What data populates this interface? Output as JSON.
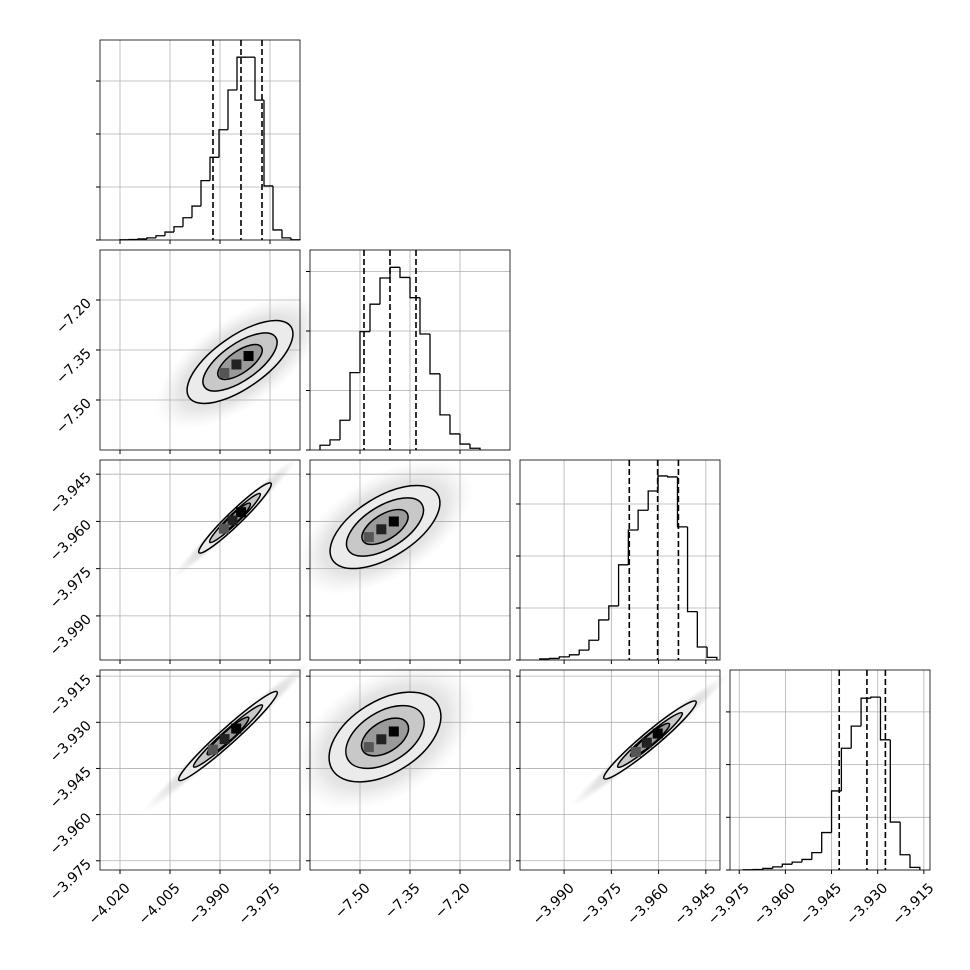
{
  "chart_data": {
    "type": "corner",
    "grid": true,
    "color": "#000000",
    "params": [
      {
        "lim": [
          -4.026,
          -3.966
        ],
        "ticks": [
          {
            "value": -4.02,
            "label": "−4.020"
          },
          {
            "value": -4.005,
            "label": "−4.005"
          },
          {
            "value": -3.99,
            "label": "−3.990"
          },
          {
            "value": -3.975,
            "label": "−3.975"
          }
        ],
        "bins": [
          -4.02,
          -4.0173,
          -4.0146,
          -4.0119,
          -4.0092,
          -4.0065,
          -4.0038,
          -4.0011,
          -3.9984,
          -3.9957,
          -3.993,
          -3.9903,
          -3.9876,
          -3.9849,
          -3.9822,
          -3.9795,
          -3.9768,
          -3.9741,
          -3.9714,
          -3.9687,
          -3.966
        ],
        "counts": [
          5,
          10,
          20,
          40,
          80,
          150,
          250,
          420,
          640,
          1120,
          1560,
          2080,
          2830,
          3450,
          3450,
          2640,
          1020,
          190,
          40,
          5
        ],
        "count_lim": [
          0,
          3774
        ],
        "count_ticks": [
          0,
          1000,
          2000,
          3000
        ],
        "quantiles": [
          -3.9921,
          -3.9837,
          -3.9774
        ]
      },
      {
        "lim": [
          -7.65,
          -7.05
        ],
        "ticks": [
          {
            "value": -7.5,
            "label": "−7.50"
          },
          {
            "value": -7.35,
            "label": "−7.35"
          },
          {
            "value": -7.2,
            "label": "−7.20"
          }
        ],
        "bins": [
          -7.62,
          -7.59,
          -7.56,
          -7.53,
          -7.5,
          -7.47,
          -7.44,
          -7.41,
          -7.38,
          -7.35,
          -7.32,
          -7.29,
          -7.26,
          -7.23,
          -7.2,
          -7.17,
          -7.14
        ],
        "counts": [
          80,
          170,
          500,
          1300,
          1990,
          2450,
          2890,
          3070,
          2900,
          2560,
          1950,
          1280,
          590,
          270,
          100,
          30
        ],
        "count_lim": [
          0,
          3361
        ],
        "count_ticks": [
          0,
          1000,
          2000,
          3000
        ],
        "quantiles": [
          -7.488,
          -7.41,
          -7.332
        ]
      },
      {
        "lim": [
          -4.004,
          -3.9405
        ],
        "ticks": [
          {
            "value": -3.99,
            "label": "−3.990"
          },
          {
            "value": -3.975,
            "label": "−3.975"
          },
          {
            "value": -3.96,
            "label": "−3.960"
          },
          {
            "value": -3.945,
            "label": "−3.945"
          }
        ],
        "bins": [
          -3.9977,
          -3.9946,
          -3.9915,
          -3.9883,
          -3.9852,
          -3.9821,
          -3.979,
          -3.9758,
          -3.9727,
          -3.9696,
          -3.9665,
          -3.9633,
          -3.9602,
          -3.9571,
          -3.954,
          -3.9508,
          -3.9477,
          -3.9446,
          -3.9415
        ],
        "counts": [
          20,
          30,
          60,
          100,
          190,
          380,
          770,
          1040,
          1830,
          2500,
          2880,
          3250,
          3540,
          3520,
          2560,
          930,
          250,
          50
        ],
        "count_lim": [
          0,
          3846
        ],
        "count_ticks": [
          0,
          1000,
          2000,
          3000
        ],
        "quantiles": [
          -3.9693,
          -3.9603,
          -3.9537
        ]
      },
      {
        "lim": [
          -3.978,
          -3.913
        ],
        "ticks": [
          {
            "value": -3.975,
            "label": "−3.975"
          },
          {
            "value": -3.96,
            "label": "−3.960"
          },
          {
            "value": -3.945,
            "label": "−3.945"
          },
          {
            "value": -3.93,
            "label": "−3.930"
          },
          {
            "value": -3.915,
            "label": "−3.915"
          }
        ],
        "bins": [
          -3.9737,
          -3.9705,
          -3.9673,
          -3.9641,
          -3.961,
          -3.9578,
          -3.9546,
          -3.9514,
          -3.9482,
          -3.945,
          -3.9418,
          -3.9386,
          -3.9354,
          -3.9322,
          -3.9291,
          -3.9259,
          -3.9227,
          -3.9195,
          -3.9163
        ],
        "counts": [
          5,
          10,
          30,
          60,
          110,
          150,
          200,
          330,
          710,
          1500,
          2310,
          2730,
          3260,
          3280,
          2470,
          910,
          290,
          50
        ],
        "count_lim": [
          0,
          3795
        ],
        "count_ticks": [
          0,
          1000,
          2000,
          3000
        ],
        "quantiles": [
          -3.9425,
          -3.9335,
          -3.9275
        ]
      }
    ]
  }
}
